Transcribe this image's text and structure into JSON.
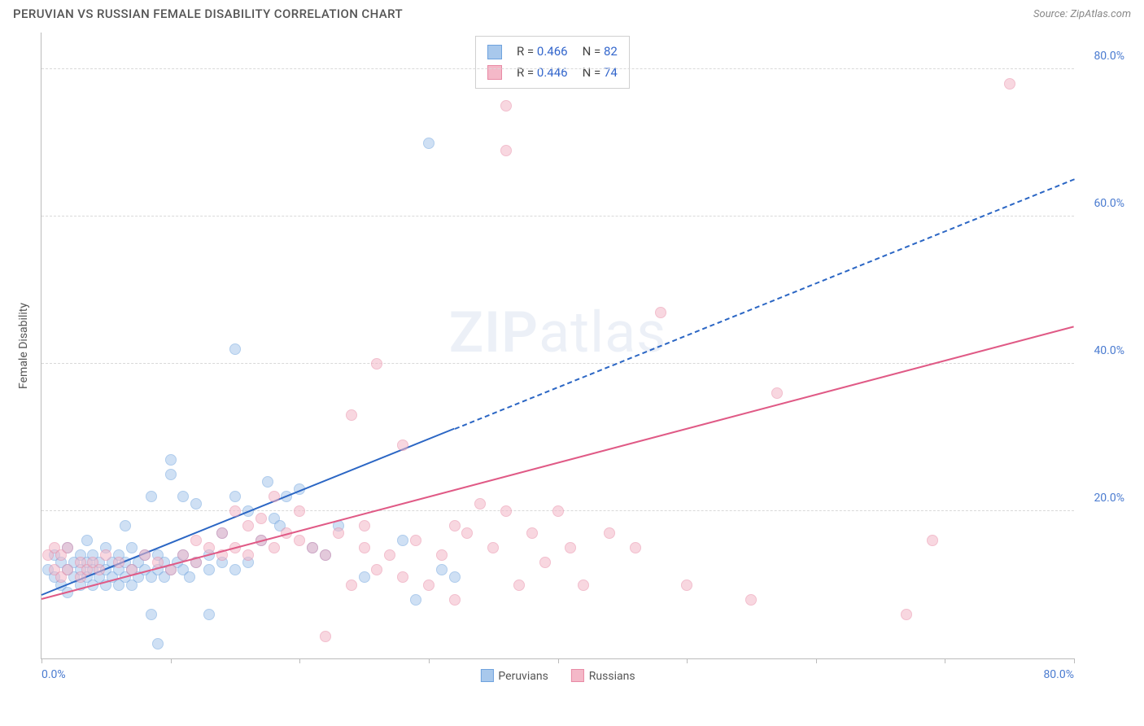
{
  "header": {
    "title": "PERUVIAN VS RUSSIAN FEMALE DISABILITY CORRELATION CHART",
    "source_prefix": "Source: ",
    "source_name": "ZipAtlas.com"
  },
  "chart": {
    "type": "scatter",
    "yaxis_title": "Female Disability",
    "xlim": [
      0,
      80
    ],
    "ylim": [
      0,
      85
    ],
    "ytick_values": [
      20,
      40,
      60,
      80
    ],
    "ytick_labels": [
      "20.0%",
      "40.0%",
      "60.0%",
      "80.0%"
    ],
    "xtick_values": [
      0,
      10,
      20,
      30,
      40,
      50,
      60,
      70,
      80
    ],
    "xtick_labels": {
      "0": "0.0%",
      "80": "80.0%"
    },
    "grid_color": "#d9d9d9",
    "axis_color": "#bbbbbb",
    "background_color": "#ffffff",
    "tick_label_color": "#4a7bd0",
    "tick_label_fontsize": 14,
    "marker_radius": 7,
    "marker_opacity": 0.55,
    "series": [
      {
        "name": "Peruvians",
        "fill": "#a8c8ec",
        "stroke": "#6fa3de",
        "trend_color": "#2b66c4",
        "trend_solid_xrange": [
          0,
          32
        ],
        "trend_yrange": [
          8.5,
          65
        ],
        "stats": {
          "R": "0.466",
          "N": "82"
        },
        "points": [
          [
            0.5,
            12
          ],
          [
            1,
            11
          ],
          [
            1,
            14
          ],
          [
            1.5,
            10
          ],
          [
            1.5,
            13
          ],
          [
            2,
            9
          ],
          [
            2,
            12
          ],
          [
            2,
            15
          ],
          [
            2.5,
            11
          ],
          [
            2.5,
            13
          ],
          [
            3,
            10
          ],
          [
            3,
            12
          ],
          [
            3,
            14
          ],
          [
            3.5,
            11
          ],
          [
            3.5,
            13
          ],
          [
            3.5,
            16
          ],
          [
            4,
            10
          ],
          [
            4,
            12
          ],
          [
            4,
            14
          ],
          [
            4.5,
            11
          ],
          [
            4.5,
            13
          ],
          [
            5,
            10
          ],
          [
            5,
            12
          ],
          [
            5,
            15
          ],
          [
            5.5,
            11
          ],
          [
            5.5,
            13
          ],
          [
            6,
            10
          ],
          [
            6,
            12
          ],
          [
            6,
            14
          ],
          [
            6.5,
            11
          ],
          [
            6.5,
            13
          ],
          [
            6.5,
            18
          ],
          [
            7,
            10
          ],
          [
            7,
            12
          ],
          [
            7,
            15
          ],
          [
            7.5,
            11
          ],
          [
            7.5,
            13
          ],
          [
            8,
            12
          ],
          [
            8,
            14
          ],
          [
            8.5,
            11
          ],
          [
            8.5,
            22
          ],
          [
            8.5,
            6
          ],
          [
            9,
            12
          ],
          [
            9,
            14
          ],
          [
            9,
            2
          ],
          [
            9.5,
            11
          ],
          [
            9.5,
            13
          ],
          [
            10,
            12
          ],
          [
            10,
            27
          ],
          [
            10,
            25
          ],
          [
            10.5,
            13
          ],
          [
            11,
            12
          ],
          [
            11,
            14
          ],
          [
            11,
            22
          ],
          [
            11.5,
            11
          ],
          [
            12,
            13
          ],
          [
            12,
            21
          ],
          [
            13,
            12
          ],
          [
            13,
            14
          ],
          [
            13,
            6
          ],
          [
            14,
            13
          ],
          [
            14,
            17
          ],
          [
            15,
            12
          ],
          [
            15,
            22
          ],
          [
            15,
            42
          ],
          [
            16,
            13
          ],
          [
            16,
            20
          ],
          [
            17,
            16
          ],
          [
            17.5,
            24
          ],
          [
            18,
            19
          ],
          [
            18.5,
            18
          ],
          [
            19,
            22
          ],
          [
            20,
            23
          ],
          [
            21,
            15
          ],
          [
            22,
            14
          ],
          [
            23,
            18
          ],
          [
            25,
            11
          ],
          [
            28,
            16
          ],
          [
            29,
            8
          ],
          [
            30,
            70
          ],
          [
            31,
            12
          ],
          [
            32,
            11
          ]
        ]
      },
      {
        "name": "Russians",
        "fill": "#f4b8c8",
        "stroke": "#e88aa5",
        "trend_color": "#e05a86",
        "trend_solid_xrange": [
          0,
          80
        ],
        "trend_yrange": [
          8,
          45
        ],
        "stats": {
          "R": "0.446",
          "N": "74"
        },
        "points": [
          [
            0.5,
            14
          ],
          [
            1,
            12
          ],
          [
            1,
            15
          ],
          [
            1.5,
            11
          ],
          [
            1.5,
            14
          ],
          [
            2,
            12
          ],
          [
            2,
            15
          ],
          [
            3,
            11
          ],
          [
            3,
            13
          ],
          [
            3.5,
            12
          ],
          [
            4,
            13
          ],
          [
            4.5,
            12
          ],
          [
            5,
            14
          ],
          [
            6,
            13
          ],
          [
            7,
            12
          ],
          [
            8,
            14
          ],
          [
            9,
            13
          ],
          [
            10,
            12
          ],
          [
            11,
            14
          ],
          [
            12,
            13
          ],
          [
            12,
            16
          ],
          [
            13,
            15
          ],
          [
            14,
            14
          ],
          [
            14,
            17
          ],
          [
            15,
            15
          ],
          [
            15,
            20
          ],
          [
            16,
            14
          ],
          [
            16,
            18
          ],
          [
            17,
            16
          ],
          [
            17,
            19
          ],
          [
            18,
            15
          ],
          [
            18,
            22
          ],
          [
            19,
            17
          ],
          [
            20,
            16
          ],
          [
            20,
            20
          ],
          [
            21,
            15
          ],
          [
            22,
            14
          ],
          [
            22,
            3
          ],
          [
            23,
            17
          ],
          [
            24,
            10
          ],
          [
            24,
            33
          ],
          [
            25,
            15
          ],
          [
            25,
            18
          ],
          [
            26,
            12
          ],
          [
            26,
            40
          ],
          [
            27,
            14
          ],
          [
            28,
            29
          ],
          [
            28,
            11
          ],
          [
            29,
            16
          ],
          [
            30,
            10
          ],
          [
            31,
            14
          ],
          [
            32,
            18
          ],
          [
            32,
            8
          ],
          [
            33,
            17
          ],
          [
            34,
            21
          ],
          [
            35,
            15
          ],
          [
            36,
            20
          ],
          [
            36,
            75
          ],
          [
            36,
            69
          ],
          [
            37,
            10
          ],
          [
            38,
            17
          ],
          [
            39,
            13
          ],
          [
            40,
            20
          ],
          [
            41,
            15
          ],
          [
            42,
            10
          ],
          [
            44,
            17
          ],
          [
            46,
            15
          ],
          [
            48,
            47
          ],
          [
            50,
            10
          ],
          [
            55,
            8
          ],
          [
            57,
            36
          ],
          [
            67,
            6
          ],
          [
            69,
            16
          ],
          [
            75,
            78
          ]
        ]
      }
    ],
    "watermark": {
      "zip": "ZIP",
      "atlas": "atlas"
    },
    "legend": [
      {
        "label": "Peruvians",
        "fill": "#a8c8ec",
        "stroke": "#6fa3de"
      },
      {
        "label": "Russians",
        "fill": "#f4b8c8",
        "stroke": "#e88aa5"
      }
    ]
  }
}
